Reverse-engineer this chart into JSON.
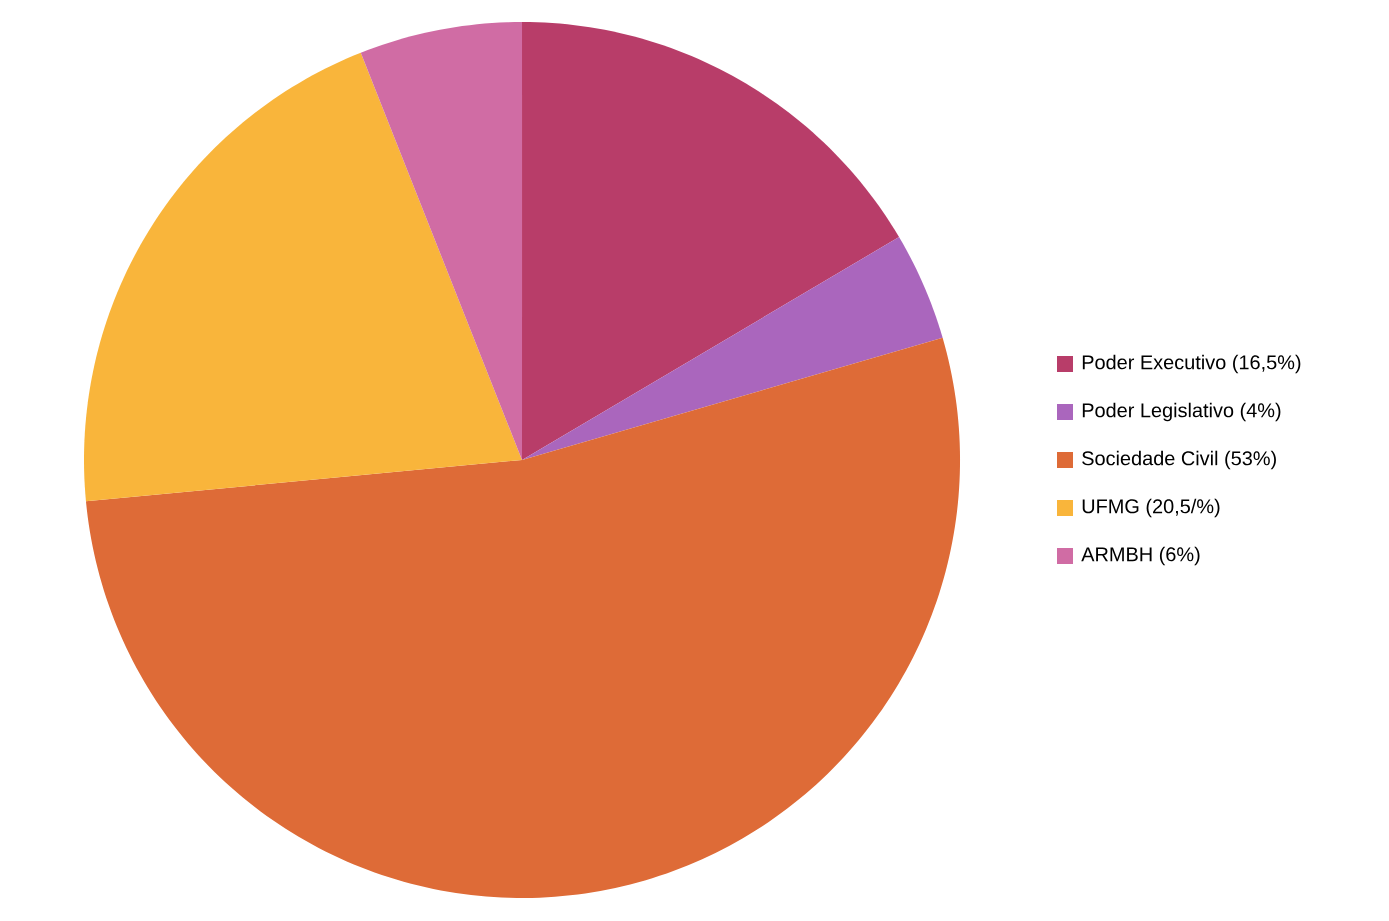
{
  "chart_data": {
    "type": "pie",
    "categories": [
      "Poder Executivo (16,5%)",
      "Poder Legislativo (4%)",
      "Sociedade Civil (53%)",
      "UFMG (20,5/%)",
      "ARMBH (6%)"
    ],
    "values": [
      16.5,
      4,
      53,
      20.5,
      6
    ],
    "colors": [
      "#b83d69",
      "#aa66bd",
      "#de6b37",
      "#f9b53b",
      "#d06ca4"
    ],
    "legend": "right"
  }
}
